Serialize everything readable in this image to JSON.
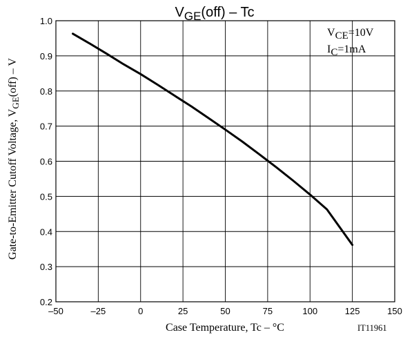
{
  "chart_data": {
    "type": "line",
    "title": {
      "main": "V",
      "sub": "GE",
      "rest": "(off)  –  Tc"
    },
    "xlabel": "Case Temperature, Tc  –  °C",
    "ylabel": {
      "pre": "Gate-to-Emitter Cutoff  Voltage, V",
      "sub": "GE",
      "post": "(off)  –  V"
    },
    "xlim": [
      -50,
      150
    ],
    "ylim": [
      0.2,
      1.0
    ],
    "xticks": [
      -50,
      -25,
      0,
      25,
      50,
      75,
      100,
      125,
      150
    ],
    "xtick_labels": [
      "–50",
      "–25",
      "0",
      "25",
      "50",
      "75",
      "100",
      "125",
      "150"
    ],
    "yticks": [
      0.2,
      0.3,
      0.4,
      0.5,
      0.6,
      0.7,
      0.8,
      0.9,
      1.0
    ],
    "ytick_labels": [
      "0.2",
      "0.3",
      "0.4",
      "0.5",
      "0.6",
      "0.7",
      "0.8",
      "0.9",
      "1.0"
    ],
    "grid": true,
    "annotations": [
      {
        "main": "V",
        "sub": "CE",
        "rest": "=10V"
      },
      {
        "main": "I",
        "sub": "C",
        "rest": "=1mA"
      }
    ],
    "figure_id": "IT11961",
    "series": [
      {
        "x": [
          -40,
          -30,
          -20,
          -10,
          0,
          10,
          20,
          30,
          40,
          50,
          60,
          70,
          80,
          90,
          100,
          110,
          125
        ],
        "y": [
          0.963,
          0.935,
          0.906,
          0.876,
          0.848,
          0.818,
          0.787,
          0.756,
          0.723,
          0.69,
          0.656,
          0.62,
          0.583,
          0.545,
          0.505,
          0.463,
          0.362
        ]
      }
    ]
  }
}
